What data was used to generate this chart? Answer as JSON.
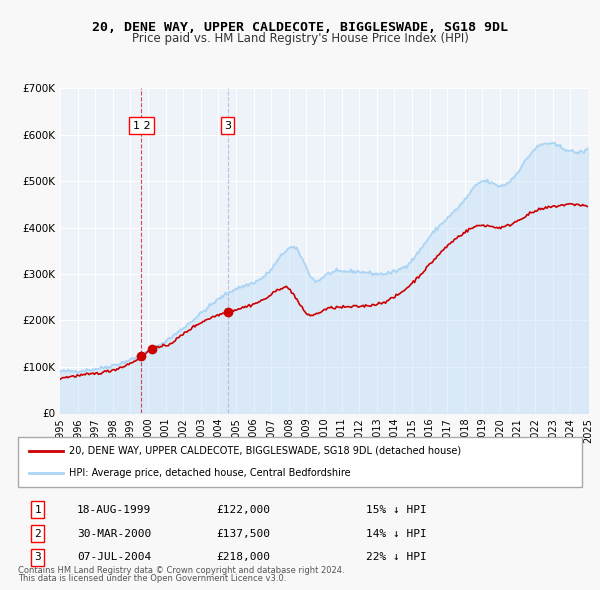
{
  "title": "20, DENE WAY, UPPER CALDECOTE, BIGGLESWADE, SG18 9DL",
  "subtitle": "Price paid vs. HM Land Registry's House Price Index (HPI)",
  "ylabel": "",
  "hpi_color": "#aad4f5",
  "price_color": "#cc0000",
  "bg_color": "#f0f4fb",
  "plot_bg": "#eef3fa",
  "grid_color": "#ffffff",
  "transactions": [
    {
      "num": 1,
      "date": "18-AUG-1999",
      "year": 1999.63,
      "price": 122000,
      "pct": "15%",
      "dir": "↓"
    },
    {
      "num": 2,
      "date": "30-MAR-2000",
      "year": 2000.25,
      "price": 137500,
      "pct": "14%",
      "dir": "↓"
    },
    {
      "num": 3,
      "date": "07-JUL-2004",
      "year": 2004.52,
      "price": 218000,
      "pct": "22%",
      "dir": "↓"
    }
  ],
  "legend_label_price": "20, DENE WAY, UPPER CALDECOTE, BIGGLESWADE, SG18 9DL (detached house)",
  "legend_label_hpi": "HPI: Average price, detached house, Central Bedfordshire",
  "footer1": "Contains HM Land Registry data © Crown copyright and database right 2024.",
  "footer2": "This data is licensed under the Open Government Licence v3.0.",
  "xmin": 1995,
  "xmax": 2025,
  "ymin": 0,
  "ymax": 700000
}
